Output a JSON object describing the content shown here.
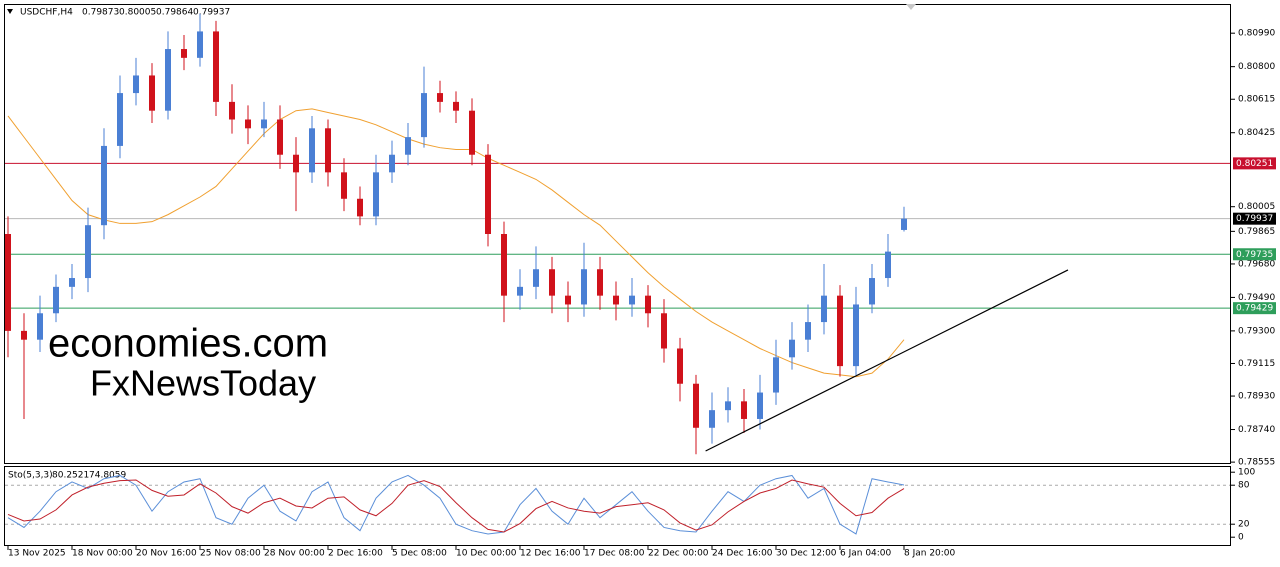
{
  "chart_data": [
    {
      "type": "candlestick",
      "title": "USDCHF,H4",
      "categories": [
        "13 Nov 2025",
        null,
        null,
        null,
        "18 Nov 00:00",
        null,
        null,
        null,
        "20 Nov 16:00",
        null,
        null,
        null,
        "25 Nov 08:00",
        null,
        null,
        null,
        "28 Nov 00:00",
        null,
        null,
        null,
        "2 Dec 16:00",
        null,
        null,
        null,
        "5 Dec 08:00",
        null,
        null,
        null,
        "10 Dec 00:00",
        null,
        null,
        null,
        "12 Dec 16:00",
        null,
        null,
        null,
        "17 Dec 08:00",
        null,
        null,
        null,
        "22 Dec 00:00",
        null,
        null,
        null,
        "24 Dec 16:00",
        null,
        null,
        null,
        "30 Dec 12:00",
        null,
        null,
        null,
        "6 Jan 04:00",
        null,
        null,
        null,
        "8 Jan 20:00"
      ],
      "open": [
        0.7985,
        0.793,
        0.7925,
        0.794,
        0.7955,
        0.796,
        0.799,
        0.8035,
        0.8065,
        0.8075,
        0.8055,
        0.809,
        0.8085,
        0.81,
        0.806,
        0.805,
        0.8045,
        0.805,
        0.803,
        0.802,
        0.8045,
        0.802,
        0.8005,
        0.7995,
        0.802,
        0.803,
        0.804,
        0.8065,
        0.806,
        0.8055,
        0.803,
        0.7985,
        0.795,
        0.7955,
        0.7965,
        0.795,
        0.7945,
        0.7965,
        0.795,
        0.7945,
        0.795,
        0.794,
        0.792,
        0.79,
        0.7875,
        0.7885,
        0.789,
        0.788,
        0.7895,
        0.7915,
        0.7925,
        0.7935,
        0.795,
        0.791,
        0.7945,
        0.796,
        0.79873
      ],
      "high": [
        0.7995,
        0.794,
        0.795,
        0.7962,
        0.7968,
        0.8,
        0.8045,
        0.8075,
        0.8085,
        0.8082,
        0.81,
        0.8098,
        0.811,
        0.8106,
        0.807,
        0.8058,
        0.806,
        0.8058,
        0.804,
        0.8052,
        0.805,
        0.8028,
        0.8012,
        0.803,
        0.8038,
        0.8048,
        0.808,
        0.8072,
        0.8066,
        0.8062,
        0.8036,
        0.7992,
        0.7965,
        0.7978,
        0.7972,
        0.7958,
        0.798,
        0.7972,
        0.7958,
        0.796,
        0.7956,
        0.7948,
        0.7926,
        0.7905,
        0.7895,
        0.7898,
        0.7897,
        0.7905,
        0.7925,
        0.7935,
        0.7945,
        0.7968,
        0.7956,
        0.7955,
        0.7968,
        0.7985,
        0.80005
      ],
      "low": [
        0.7915,
        0.788,
        0.7918,
        0.7935,
        0.7948,
        0.7952,
        0.7982,
        0.8028,
        0.8058,
        0.8048,
        0.805,
        0.8078,
        0.808,
        0.8052,
        0.8042,
        0.8036,
        0.804,
        0.8022,
        0.7998,
        0.8014,
        0.8012,
        0.7998,
        0.799,
        0.799,
        0.8014,
        0.8024,
        0.8034,
        0.8054,
        0.8048,
        0.8024,
        0.7978,
        0.7935,
        0.7942,
        0.7948,
        0.794,
        0.7935,
        0.7938,
        0.7942,
        0.7936,
        0.7938,
        0.7932,
        0.7912,
        0.789,
        0.786,
        0.7866,
        0.7878,
        0.7872,
        0.7874,
        0.7888,
        0.7908,
        0.7918,
        0.7928,
        0.7904,
        0.7905,
        0.794,
        0.7955,
        0.79864
      ],
      "close": [
        0.793,
        0.7925,
        0.794,
        0.7955,
        0.796,
        0.799,
        0.8035,
        0.8065,
        0.8075,
        0.8055,
        0.809,
        0.8085,
        0.81,
        0.806,
        0.805,
        0.8045,
        0.805,
        0.803,
        0.802,
        0.8045,
        0.802,
        0.8005,
        0.7995,
        0.802,
        0.803,
        0.804,
        0.8065,
        0.806,
        0.8055,
        0.803,
        0.7985,
        0.795,
        0.7955,
        0.7965,
        0.795,
        0.7945,
        0.7965,
        0.795,
        0.7945,
        0.795,
        0.794,
        0.792,
        0.79,
        0.7875,
        0.7885,
        0.789,
        0.788,
        0.7895,
        0.7915,
        0.7925,
        0.7935,
        0.795,
        0.791,
        0.7945,
        0.796,
        0.7975,
        0.79937
      ],
      "up_color": "#4a7fd4",
      "down_color": "#d0121b",
      "ma": {
        "color": "#f0a030",
        "values": [
          0.8052,
          0.804,
          0.8028,
          0.8016,
          0.8004,
          0.7996,
          0.7993,
          0.7991,
          0.7991,
          0.7992,
          0.7996,
          0.8001,
          0.8006,
          0.8012,
          0.8022,
          0.8032,
          0.8042,
          0.805,
          0.8055,
          0.8056,
          0.8054,
          0.8052,
          0.805,
          0.8047,
          0.8043,
          0.8039,
          0.8036,
          0.8034,
          0.8033,
          0.8033,
          0.8028,
          0.8024,
          0.802,
          0.8016,
          0.801,
          0.8003,
          0.7996,
          0.799,
          0.7981,
          0.7972,
          0.7963,
          0.7955,
          0.7948,
          0.7941,
          0.7935,
          0.793,
          0.7925,
          0.792,
          0.7916,
          0.7912,
          0.7909,
          0.7906,
          0.7905,
          0.7904,
          0.7906,
          0.7914,
          0.7925
        ]
      },
      "levels": [
        {
          "value": 0.80251,
          "color": "#c8102e"
        },
        {
          "value": 0.79937,
          "color": "#000000",
          "line_color": "#b8b8b8"
        },
        {
          "value": 0.79735,
          "color": "#2e9e5b"
        },
        {
          "value": 0.79429,
          "color": "#2e9e5b"
        }
      ],
      "trendline": {
        "x": [
          43.6,
          66.25
        ],
        "y": [
          0.78618,
          0.79646
        ],
        "color": "#000000"
      },
      "watermark": [
        "economies.com",
        "FxNewsToday"
      ],
      "ylim": [
        0.7855,
        0.8115
      ],
      "yticks": [
        {
          "value": 0.8099,
          "label": "0.80990"
        },
        {
          "value": 0.808,
          "label": "0.80800"
        },
        0.80615,
        0.80425,
        0.80005,
        0.79865,
        {
          "value": 0.7968,
          "label": "0.79680"
        },
        {
          "value": 0.7949,
          "label": "0.79490"
        },
        {
          "value": 0.793,
          "label": "0.79300"
        },
        0.79115,
        {
          "value": 0.7893,
          "label": "0.78930"
        },
        {
          "value": 0.7874,
          "label": "0.78740"
        },
        0.78555
      ]
    },
    {
      "type": "line",
      "title": "Sto(5,3,3)",
      "series": [
        {
          "color": "#5b8fd8",
          "values": [
            30,
            15,
            40,
            70,
            85,
            75,
            90,
            95,
            80,
            40,
            70,
            85,
            90,
            30,
            20,
            60,
            80,
            40,
            25,
            70,
            85,
            30,
            10,
            60,
            85,
            95,
            80,
            60,
            20,
            10,
            5,
            8,
            50,
            75,
            40,
            20,
            60,
            30,
            50,
            70,
            40,
            15,
            10,
            8,
            40,
            70,
            55,
            80,
            90,
            95,
            60,
            75,
            20,
            5,
            90,
            85,
            80.2521
          ]
        },
        {
          "color": "#c0202a",
          "values": [
            35,
            25,
            28,
            42,
            65,
            77,
            83,
            87,
            88,
            72,
            63,
            65,
            82,
            68,
            47,
            37,
            53,
            60,
            48,
            45,
            60,
            62,
            42,
            33,
            52,
            80,
            87,
            78,
            53,
            30,
            12,
            8,
            21,
            44,
            55,
            45,
            40,
            37,
            47,
            50,
            53,
            42,
            22,
            11,
            19,
            39,
            55,
            68,
            75,
            88,
            82,
            77,
            52,
            33,
            38,
            60,
            74.8059
          ]
        }
      ],
      "ylim": [
        -12,
        108
      ],
      "yticks": [
        100,
        80,
        20,
        0
      ],
      "dashed": [
        80,
        20
      ]
    }
  ]
}
